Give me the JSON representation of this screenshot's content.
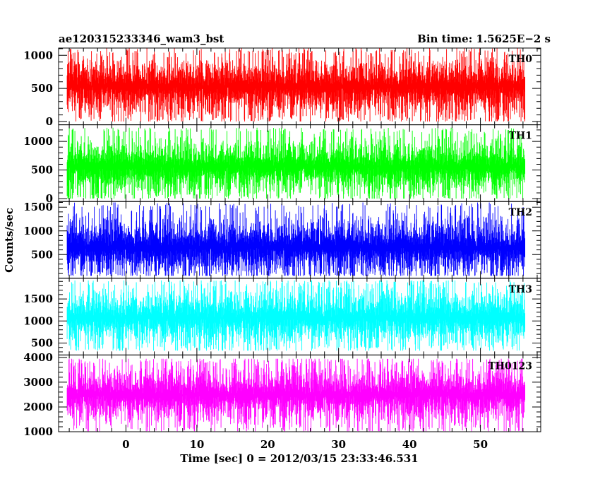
{
  "chart_data": {
    "type": "line",
    "title_left": "ae120315233346_wam3_bst",
    "title_right": "Bin time: 1.5625E−2 s",
    "xlabel": "Time [sec] 0 = 2012/03/15 23:33:46.531",
    "ylabel": "Counts/sec",
    "xlim": [
      -9.5,
      58.5
    ],
    "x_data_range": [
      -8.3,
      56.3
    ],
    "x_ticks": [
      0,
      10,
      20,
      30,
      40,
      50
    ],
    "x_tick_labels": [
      "0",
      "10",
      "20",
      "30",
      "40",
      "50"
    ],
    "x_minor_step": 2,
    "grid": false,
    "panels": [
      {
        "name": "TH0",
        "color": "#ff0000",
        "ylim": [
          -50,
          1110
        ],
        "yticks": [
          0,
          500,
          1000
        ],
        "ytick_labels": [
          "0",
          "500",
          "1000"
        ],
        "y_minor_step": 100,
        "mean": 530,
        "min": 0,
        "max": 1100,
        "clip_top": true
      },
      {
        "name": "TH1",
        "color": "#00ff00",
        "ylim": [
          -50,
          1290
        ],
        "yticks": [
          0,
          500,
          1000
        ],
        "ytick_labels": [
          "0",
          "500",
          "1000"
        ],
        "y_minor_step": 100,
        "mean": 560,
        "min": 0,
        "max": 1240,
        "clip_top": false
      },
      {
        "name": "TH2",
        "color": "#0000ff",
        "ylim": [
          0,
          1620
        ],
        "yticks": [
          500,
          1000,
          1500
        ],
        "ytick_labels": [
          "500",
          "1000",
          "1500"
        ],
        "y_minor_step": 100,
        "mean": 660,
        "min": 50,
        "max": 1600,
        "clip_top": false
      },
      {
        "name": "TH3",
        "color": "#00ffff",
        "ylim": [
          230,
          1970
        ],
        "yticks": [
          500,
          1000,
          1500
        ],
        "ytick_labels": [
          "500",
          "1000",
          "1500"
        ],
        "y_minor_step": 100,
        "mean": 1080,
        "min": 330,
        "max": 1920,
        "clip_top": false
      },
      {
        "name": "TH0123",
        "color": "#ff00ff",
        "ylim": [
          1000,
          4100
        ],
        "yticks": [
          1000,
          2000,
          3000,
          4000
        ],
        "ytick_labels": [
          "1000",
          "2000",
          "3000",
          "4000"
        ],
        "y_minor_step": 200,
        "mean": 2500,
        "min": 1020,
        "max": 3950,
        "clip_top": false
      }
    ]
  }
}
